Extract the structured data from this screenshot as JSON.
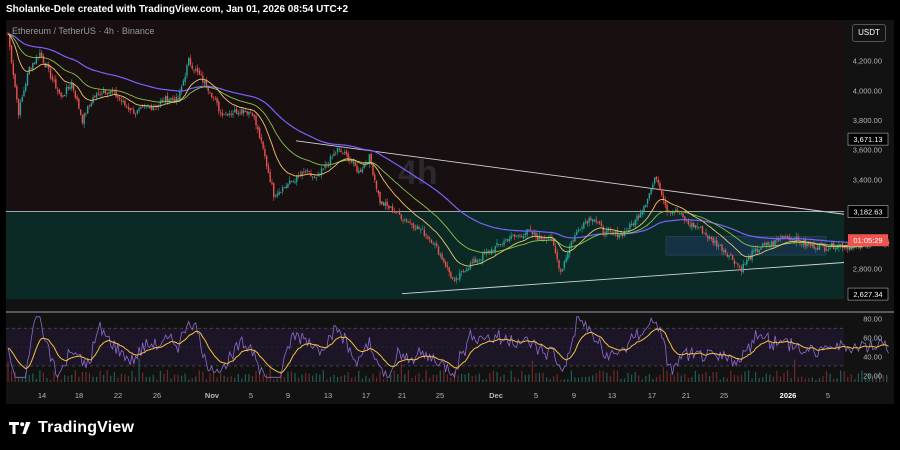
{
  "header": {
    "attribution": "Sholanke-Dele created with TradingView.com, Jan 01, 2026 08:54 UTC+2"
  },
  "chart": {
    "symbol": "Ethereum / TetherUS · 4h · Binance",
    "watermark": "4h",
    "currency": "USDT",
    "price_labels": {
      "resistance_top": "3,671.13",
      "box_top": "3,182.63",
      "countdown": "01:05:29",
      "current_hidden": "2,7??",
      "support_low": "2,627.34"
    },
    "colors": {
      "candle_up": "#26a69a",
      "candle_down": "#ef5350",
      "ma_purple": "#7b61ff",
      "ma_orange": "#f0c36d",
      "ma_green": "#8bc34a",
      "trend_line": "#d1d4dc",
      "zone_fill": "#0b2a26",
      "box_fill": "#1d3a5c",
      "rsi_line": "#8e6bd1",
      "rsi_ma": "#f5c242",
      "price_badge": "#ef5350"
    }
  },
  "chart_data": [
    {
      "type": "candlestick",
      "title": "Ethereum / TetherUS · 4h · Binance",
      "y_ticks": [
        4400,
        4200,
        4000,
        3800,
        3600,
        3400,
        3200,
        2800
      ],
      "ylim": [
        2520,
        4460
      ],
      "x_ticks": [
        "14",
        "18",
        "22",
        "26",
        "Nov",
        "5",
        "9",
        "13",
        "17",
        "21",
        "25",
        "Dec",
        "5",
        "9",
        "13",
        "17",
        "21",
        "25",
        "2026",
        "5"
      ],
      "close_path": [
        [
          "Oct 10",
          4380
        ],
        [
          "Oct 11",
          3850
        ],
        [
          "Oct 12",
          4150
        ],
        [
          "Oct 13",
          4250
        ],
        [
          "Oct 14",
          4100
        ],
        [
          "Oct 15",
          3950
        ],
        [
          "Oct 16",
          4050
        ],
        [
          "Oct 17",
          3800
        ],
        [
          "Oct 18",
          3950
        ],
        [
          "Oct 19",
          4000
        ],
        [
          "Oct 20",
          3980
        ],
        [
          "Oct 21",
          3900
        ],
        [
          "Oct 22",
          3850
        ],
        [
          "Oct 23",
          3880
        ],
        [
          "Oct 24",
          3900
        ],
        [
          "Oct 25",
          3950
        ],
        [
          "Oct 26",
          3930
        ],
        [
          "Oct 27",
          4200
        ],
        [
          "Oct 28",
          4100
        ],
        [
          "Oct 29",
          4000
        ],
        [
          "Oct 30",
          3850
        ],
        [
          "Oct 31",
          3850
        ],
        [
          "Nov 1",
          3870
        ],
        [
          "Nov 2",
          3850
        ],
        [
          "Nov 3",
          3600
        ],
        [
          "Nov 4",
          3300
        ],
        [
          "Nov 5",
          3350
        ],
        [
          "Nov 6",
          3400
        ],
        [
          "Nov 7",
          3450
        ],
        [
          "Nov 8",
          3400
        ],
        [
          "Nov 9",
          3500
        ],
        [
          "Nov 10",
          3600
        ],
        [
          "Nov 11",
          3550
        ],
        [
          "Nov 12",
          3450
        ],
        [
          "Nov 13",
          3550
        ],
        [
          "Nov 14",
          3250
        ],
        [
          "Nov 15",
          3200
        ],
        [
          "Nov 16",
          3150
        ],
        [
          "Nov 17",
          3100
        ],
        [
          "Nov 18",
          3050
        ],
        [
          "Nov 19",
          2980
        ],
        [
          "Nov 20",
          2850
        ],
        [
          "Nov 21",
          2700
        ],
        [
          "Nov 22",
          2800
        ],
        [
          "Nov 23",
          2850
        ],
        [
          "Nov 24",
          2900
        ],
        [
          "Nov 25",
          2950
        ],
        [
          "Nov 26",
          3000
        ],
        [
          "Nov 27",
          3020
        ],
        [
          "Nov 28",
          3050
        ],
        [
          "Nov 29",
          3000
        ],
        [
          "Nov 30",
          3020
        ],
        [
          "Dec 1",
          2780
        ],
        [
          "Dec 2",
          2980
        ],
        [
          "Dec 3",
          3100
        ],
        [
          "Dec 4",
          3150
        ],
        [
          "Dec 5",
          3050
        ],
        [
          "Dec 6",
          3030
        ],
        [
          "Dec 7",
          3040
        ],
        [
          "Dec 8",
          3120
        ],
        [
          "Dec 9",
          3250
        ],
        [
          "Dec 10",
          3420
        ],
        [
          "Dec 11",
          3200
        ],
        [
          "Dec 12",
          3180
        ],
        [
          "Dec 13",
          3100
        ],
        [
          "Dec 14",
          3080
        ],
        [
          "Dec 15",
          3000
        ],
        [
          "Dec 16",
          2950
        ],
        [
          "Dec 17",
          2880
        ],
        [
          "Dec 18",
          2800
        ],
        [
          "Dec 19",
          2900
        ],
        [
          "Dec 20",
          2950
        ],
        [
          "Dec 21",
          2970
        ],
        [
          "Dec 22",
          3020
        ],
        [
          "Dec 23",
          3000
        ],
        [
          "Dec 24",
          2960
        ],
        [
          "Dec 25",
          2950
        ],
        [
          "Dec 26",
          2940
        ],
        [
          "Dec 27",
          2960
        ],
        [
          "Dec 28",
          2950
        ],
        [
          "Dec 29",
          2940
        ],
        [
          "Dec 30",
          2970
        ],
        [
          "Dec 31",
          2980
        ],
        [
          "Jan 1",
          2975
        ]
      ]
    },
    {
      "type": "line",
      "title": "RSI",
      "y_ticks": [
        80,
        60,
        40,
        20
      ],
      "ylim": [
        13,
        85
      ],
      "bands": [
        70,
        30
      ]
    }
  ]
}
